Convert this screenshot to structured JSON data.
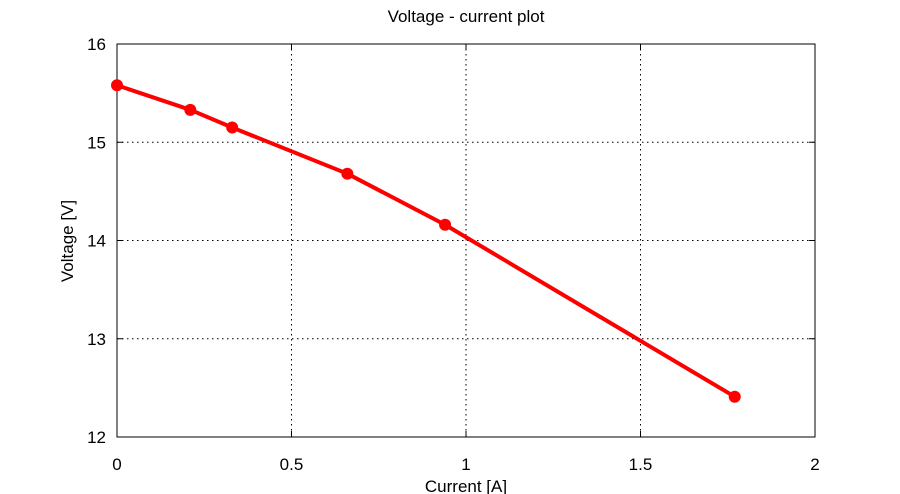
{
  "chart_data": {
    "type": "line",
    "title": "Voltage - current plot",
    "xlabel": "Current [A]",
    "ylabel": "Voltage [V]",
    "xlim": [
      0,
      2
    ],
    "ylim": [
      12,
      16
    ],
    "grid": true,
    "xticks": [
      0,
      0.5,
      1,
      1.5,
      2
    ],
    "xtick_labels": [
      "0",
      "0.5",
      "1",
      "1.5",
      "2"
    ],
    "yticks": [
      12,
      13,
      14,
      15,
      16
    ],
    "ytick_labels": [
      "12",
      "13",
      "14",
      "15",
      "16"
    ],
    "series": [
      {
        "name": "Voltage",
        "color": "#ff0000",
        "x": [
          0,
          0.21,
          0.33,
          0.66,
          0.94,
          1.77
        ],
        "y": [
          15.58,
          15.33,
          15.15,
          14.68,
          14.16,
          12.41
        ]
      }
    ]
  }
}
